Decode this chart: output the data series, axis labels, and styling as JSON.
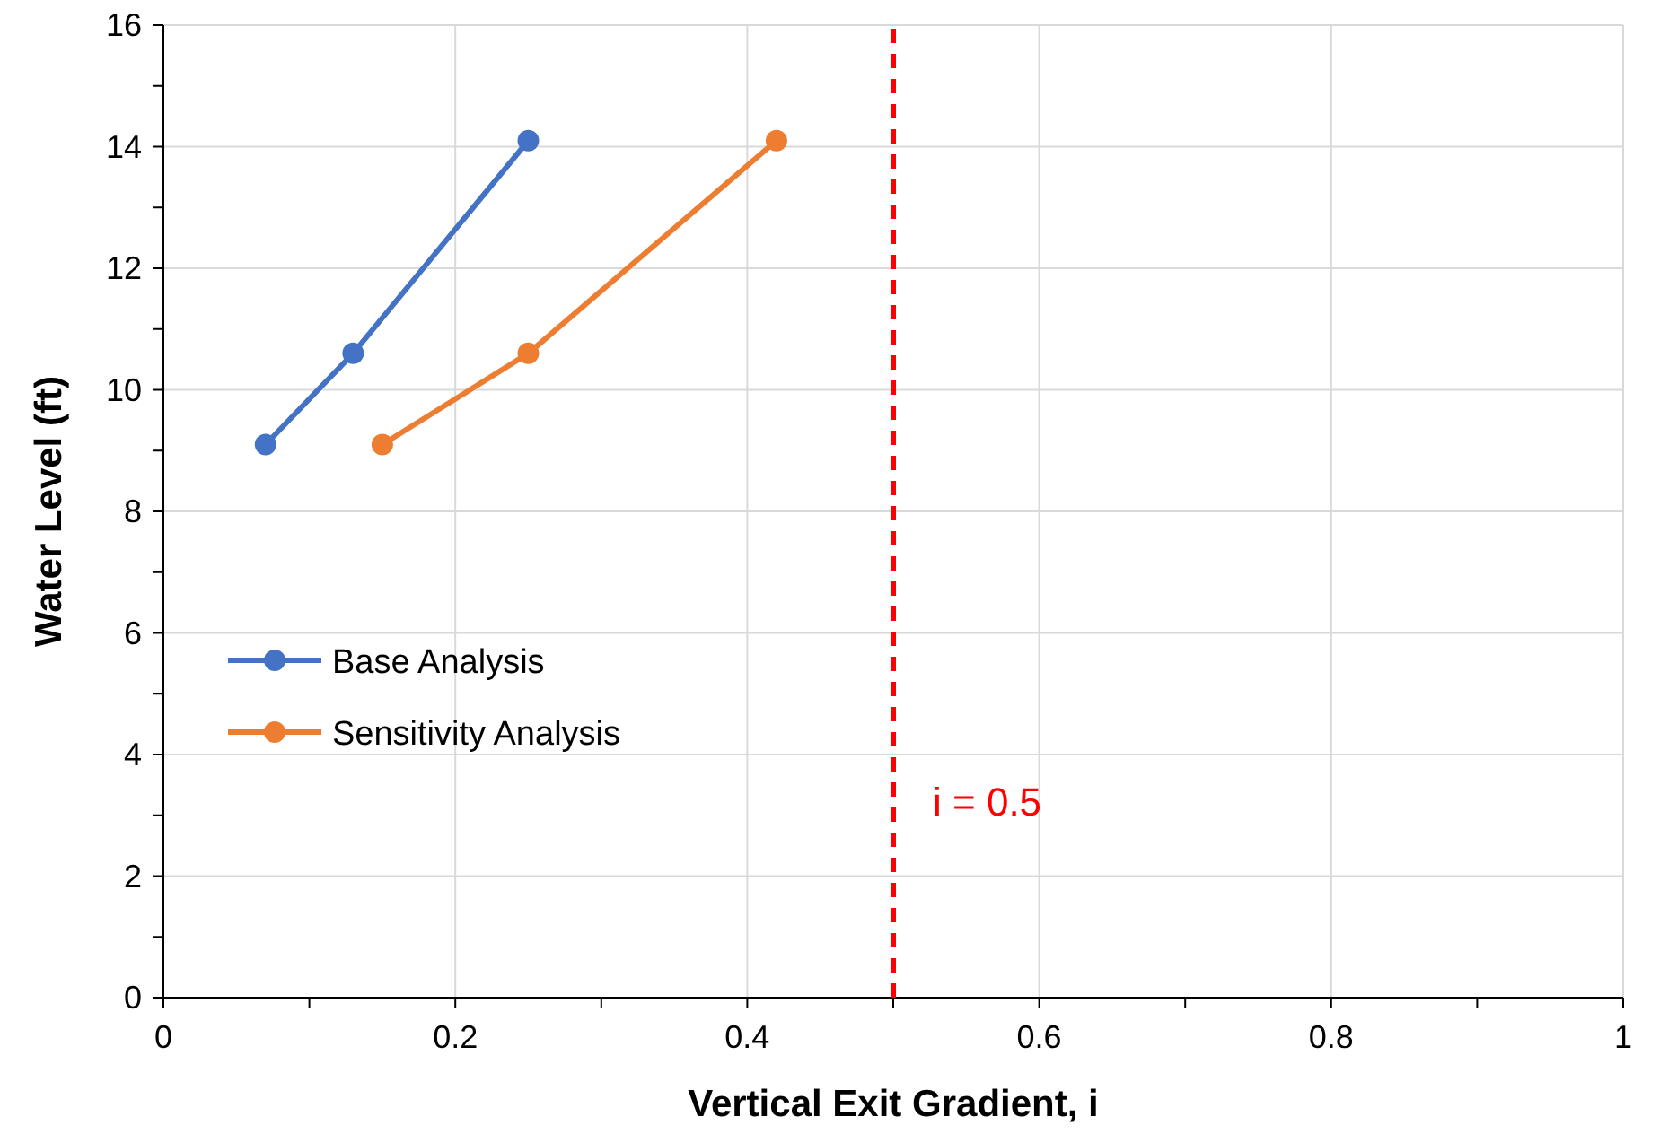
{
  "chart_data": {
    "type": "line",
    "xlabel": "Vertical Exit Gradient, i",
    "ylabel": "Water Level (ft)",
    "xlim": [
      0,
      1
    ],
    "ylim": [
      0,
      16
    ],
    "xticks": [
      0,
      {
        "value": 0.1,
        "label": null
      },
      0.2,
      {
        "value": 0.3,
        "label": null
      },
      0.4,
      {
        "value": 0.5,
        "label": null
      },
      0.6,
      {
        "value": 0.7,
        "label": null
      },
      0.8,
      {
        "value": 0.9,
        "label": null
      },
      1
    ],
    "yticks": [
      0,
      {
        "value": 1,
        "label": null
      },
      2,
      {
        "value": 3,
        "label": null
      },
      4,
      {
        "value": 5,
        "label": null
      },
      6,
      {
        "value": 7,
        "label": null
      },
      8,
      {
        "value": 9,
        "label": null
      },
      10,
      {
        "value": 11,
        "label": null
      },
      12,
      {
        "value": 13,
        "label": null
      },
      14,
      {
        "value": 15,
        "label": null
      },
      16
    ],
    "grid": true,
    "legend": "left",
    "marker": "circle",
    "line_style": "solid",
    "series": [
      {
        "name": "Base Analysis",
        "color": "#4472c4",
        "x": [
          0.07,
          0.13,
          0.25
        ],
        "values": [
          9.1,
          10.6,
          14.1
        ]
      },
      {
        "name": "Sensitivity Analysis",
        "color": "#ed7d31",
        "x": [
          0.15,
          0.25,
          0.42
        ],
        "values": [
          9.1,
          10.6,
          14.1
        ]
      }
    ],
    "ref_lines": [
      {
        "axis": "x",
        "value": 0.5,
        "label": "i = 0.5",
        "color": "#ff0000",
        "line_style": "dashed"
      }
    ]
  }
}
